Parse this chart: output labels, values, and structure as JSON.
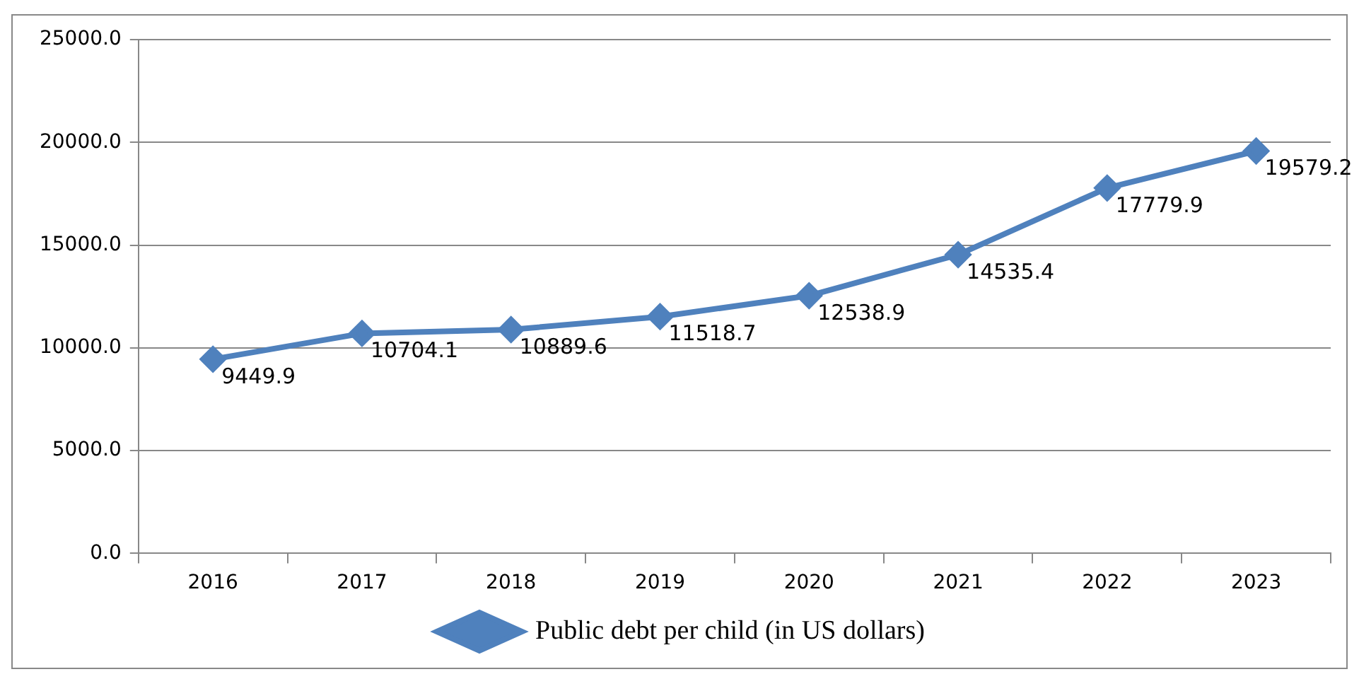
{
  "chart_data": {
    "type": "line",
    "categories": [
      "2016",
      "2017",
      "2018",
      "2019",
      "2020",
      "2021",
      "2022",
      "2023"
    ],
    "series": [
      {
        "name": "Public debt per child (in US dollars)",
        "color": "#4f81bd",
        "values": [
          9449.9,
          10704.1,
          10889.6,
          11518.7,
          12538.9,
          14535.4,
          17779.9,
          19579.2
        ]
      }
    ],
    "ylim": [
      0,
      25000
    ],
    "yticks": [
      {
        "value": 0,
        "label": "0.0"
      },
      {
        "value": 5000,
        "label": "5000.0"
      },
      {
        "value": 10000,
        "label": "10000.0"
      },
      {
        "value": 15000,
        "label": "15000.0"
      },
      {
        "value": 20000,
        "label": "20000.0"
      },
      {
        "value": 25000,
        "label": "25000.0"
      }
    ],
    "grid": "y",
    "legend": "bottom",
    "marker": "diamond",
    "line_style": "solid",
    "data_labels": true
  }
}
